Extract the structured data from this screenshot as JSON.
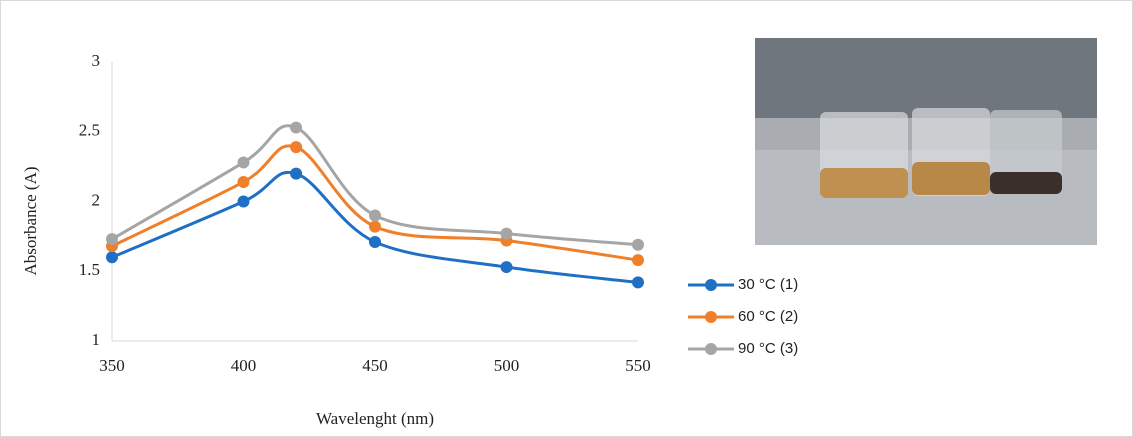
{
  "chart_data": {
    "type": "line",
    "y_label": "Absorbance (A)",
    "x_label": "Wavelenght (nm)",
    "x": [
      350,
      400,
      420,
      450,
      500,
      550
    ],
    "series": [
      {
        "name": "30 °C (1)",
        "color": "#1f6fc5",
        "values": [
          1.6,
          2.0,
          2.2,
          1.71,
          1.53,
          1.42
        ]
      },
      {
        "name": "60 °C (2)",
        "color": "#f07f2a",
        "values": [
          1.68,
          2.14,
          2.39,
          1.82,
          1.72,
          1.58
        ]
      },
      {
        "name": "90 °C (3)",
        "color": "#a5a5a5",
        "values": [
          1.73,
          2.28,
          2.53,
          1.9,
          1.77,
          1.69
        ]
      }
    ],
    "xlim": [
      350,
      550
    ],
    "xticks": [
      350,
      400,
      450,
      500,
      550
    ],
    "ylim": [
      1,
      3
    ],
    "yticks": [
      1,
      1.5,
      2,
      2.5,
      3
    ],
    "legend": "right",
    "smooth": true
  }
}
